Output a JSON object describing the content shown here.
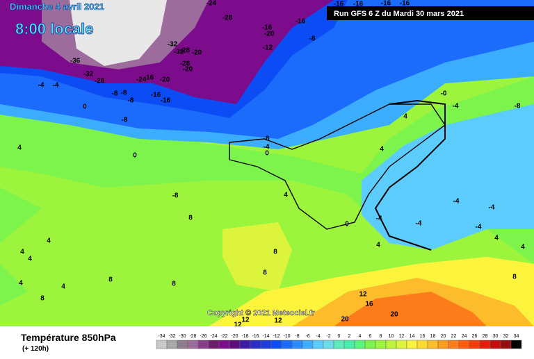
{
  "header": {
    "date": "Dimanche 4 avril 2021",
    "time": "8:00 locale",
    "run": "Run GFS 6 Z du Mardi 30 mars 2021"
  },
  "footer": {
    "title": "Température 850hPa",
    "subtitle": "(+ 120h)",
    "copyright": "Copyright © 2021 Meteociel.fr"
  },
  "scale": {
    "values": [
      -34,
      -32,
      -30,
      -28,
      -26,
      -24,
      -22,
      -20,
      -18,
      -16,
      -14,
      -12,
      -10,
      -8,
      -6,
      -4,
      -2,
      0,
      2,
      4,
      6,
      8,
      10,
      12,
      14,
      16,
      18,
      20,
      22,
      24,
      26,
      28,
      30,
      32,
      34
    ],
    "colors": [
      "#c8c8c8",
      "#a8a8a8",
      "#8c7c8c",
      "#9c6c9c",
      "#8c3c8c",
      "#6c1c6c",
      "#7c0c8c",
      "#5c0c7c",
      "#3c1ca4",
      "#2c2cc8",
      "#1c3cdc",
      "#0c4cf4",
      "#1c6cfc",
      "#2c8cfc",
      "#3cacfc",
      "#5cccfc",
      "#6cdcec",
      "#5cecbc",
      "#4cecac",
      "#5cf47c",
      "#7cf44c",
      "#9cf43c",
      "#bcf43c",
      "#dcf43c",
      "#fcf43c",
      "#fcdc2c",
      "#fcbc2c",
      "#fc9c1c",
      "#fc7c1c",
      "#fc5c0c",
      "#f43c0c",
      "#e41c0c",
      "#c40c0c",
      "#940c0c",
      "#040404"
    ]
  },
  "contour_labels": [
    "-8",
    "-16",
    "-16",
    "-20",
    "-12",
    "-16",
    "-16",
    "-16",
    "-16",
    "-28",
    "-24",
    "-32",
    "-32",
    "-28",
    "-20",
    "-28",
    "-20",
    "-36",
    "-32",
    "-28",
    "-24",
    "-16",
    "-20",
    "-16",
    "-16",
    "-8",
    "-8",
    "-8",
    "-4",
    "-4",
    "0",
    "-8",
    "-8",
    "-4",
    "0",
    "0",
    "-0",
    "-4",
    "-8",
    "4",
    "4",
    "4",
    "4",
    "-8",
    "8",
    "4",
    "4",
    "4",
    "8",
    "8",
    "8",
    "8",
    "4",
    "4",
    "8",
    "0",
    "-4",
    "-4",
    "-4",
    "-4",
    "-4",
    "4",
    "4",
    "12",
    "16",
    "12",
    "12",
    "12",
    "20",
    "20",
    "4",
    "8"
  ]
}
